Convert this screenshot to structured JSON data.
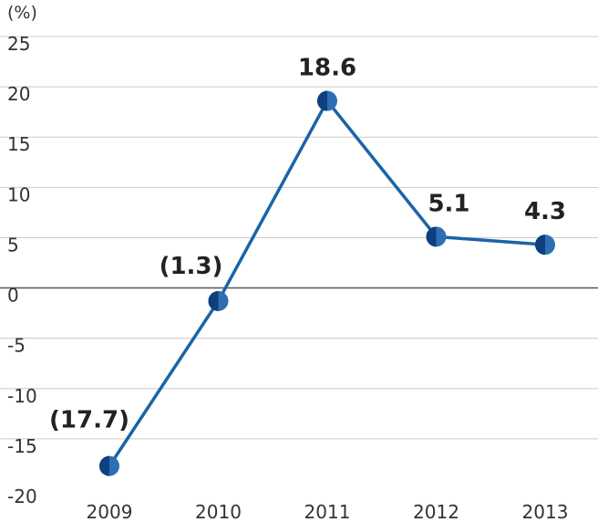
{
  "chart_data": {
    "type": "line",
    "unit_label": "(%)",
    "categories": [
      "2009",
      "2010",
      "2011",
      "2012",
      "2013"
    ],
    "values": [
      -17.7,
      -1.3,
      18.6,
      5.1,
      4.3
    ],
    "data_labels": [
      "(17.7)",
      "(1.3)",
      "18.6",
      "5.1",
      "4.3"
    ],
    "y_ticks": [
      "25",
      "20",
      "15",
      "10",
      "5",
      "0",
      "-5",
      "-10",
      "-15",
      "-20"
    ],
    "ylim": [
      -20,
      25
    ],
    "grid": true,
    "colors": {
      "line": "#1a64a8",
      "marker_dark": "#0f3f7c",
      "marker_light": "#2e6fb3",
      "grid": "#cccccc",
      "zero_line": "#555555"
    }
  }
}
